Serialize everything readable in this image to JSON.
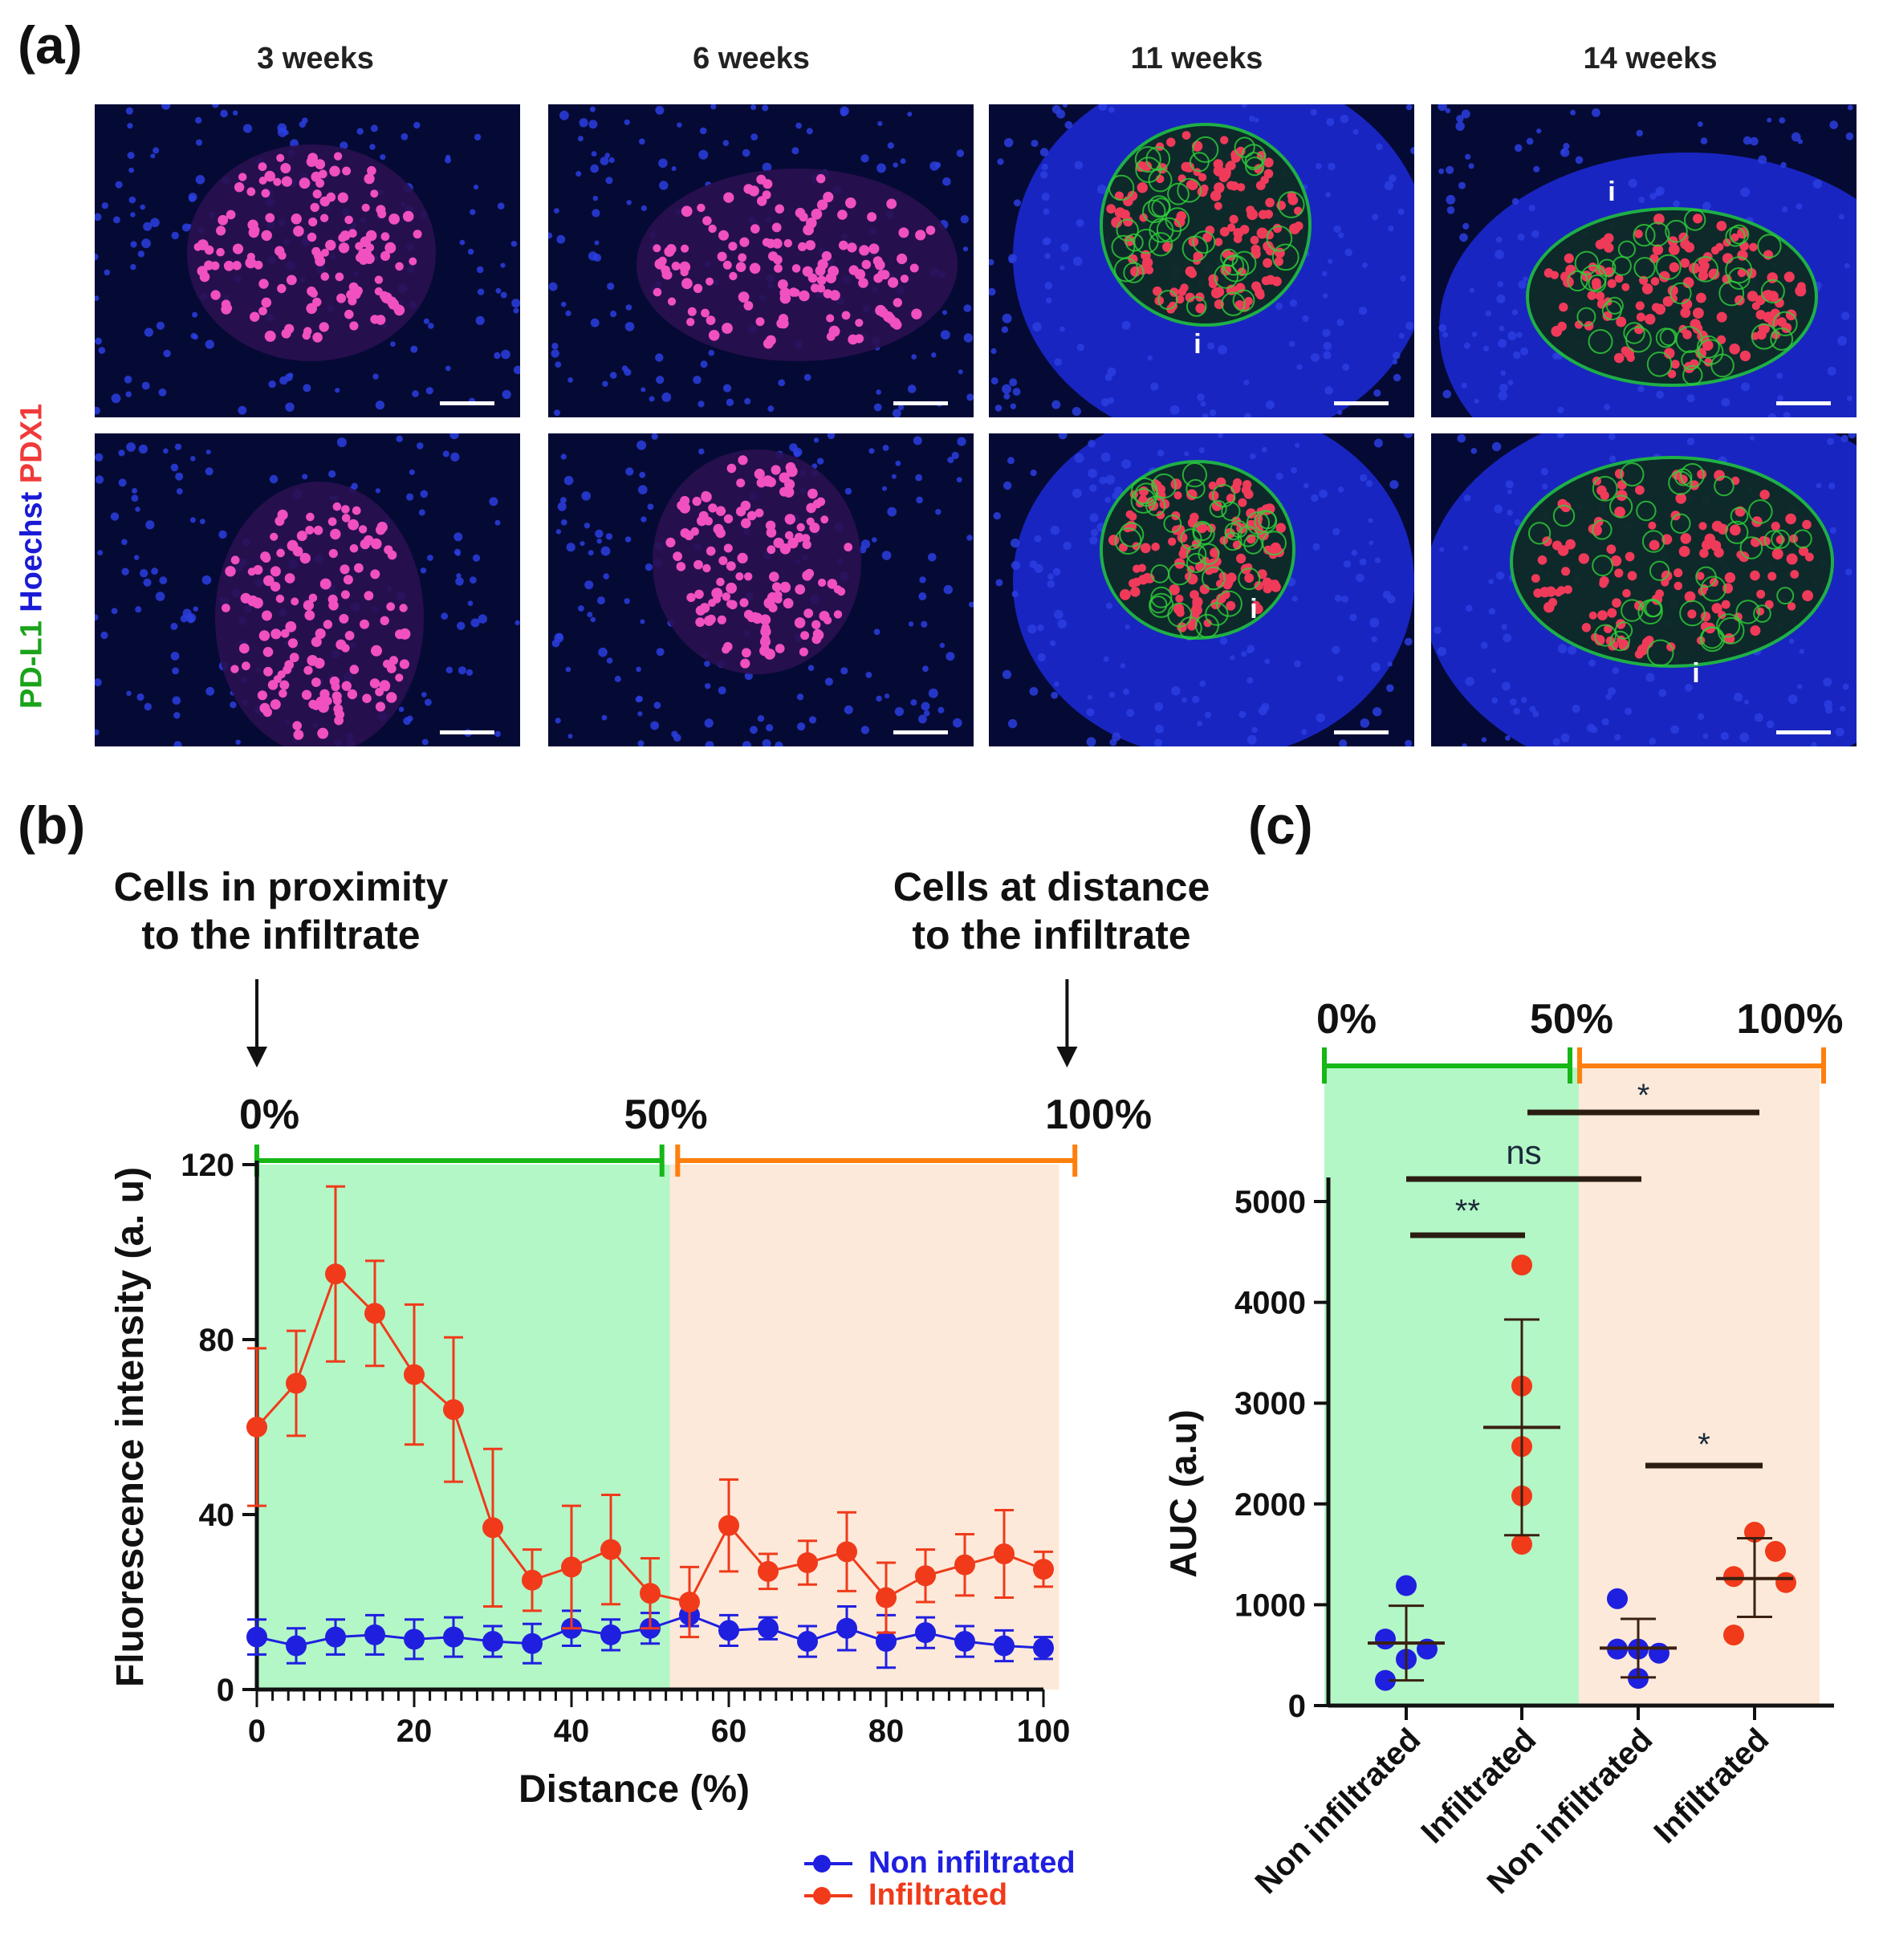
{
  "panels": {
    "a": "(a)",
    "b": "(b)",
    "c": "(c)"
  },
  "panel_a": {
    "timepoints": [
      "3 weeks",
      "6 weeks",
      "11 weeks",
      "14 weeks"
    ],
    "stain_label": [
      {
        "text": "PD-L1",
        "color": "#1aa31a"
      },
      {
        "text": " Hoechst",
        "color": "#1a1ad6"
      },
      {
        "text": " PDX1",
        "color": "#f03a3a"
      }
    ],
    "infiltrate_marker": "i"
  },
  "panel_b": {
    "annotation_left": [
      "Cells in proximity",
      "to the infiltrate"
    ],
    "annotation_right": [
      "Cells at distance",
      "to the infiltrate"
    ]
  },
  "chart_data": [
    {
      "type": "line",
      "xlabel": "Distance (%)",
      "ylabel": "Fluorescence intensity (a. u)",
      "xlim": [
        0,
        100
      ],
      "ylim": [
        0,
        120
      ],
      "xticks": [
        0,
        20,
        40,
        60,
        80,
        100
      ],
      "yticks": [
        0,
        40,
        80,
        120
      ],
      "region_labels": [
        "0%",
        "50%",
        "100%"
      ],
      "region_colors": {
        "proximal": "#b3f7c7",
        "distal": "#fde9d9",
        "proximal_bar": "#16b716",
        "distal_bar": "#ff7f0e"
      },
      "x": [
        0,
        5,
        10,
        15,
        20,
        25,
        30,
        35,
        40,
        45,
        50,
        55,
        60,
        65,
        70,
        75,
        80,
        85,
        90,
        95,
        100
      ],
      "series": [
        {
          "name": "Non infiltrated",
          "color": "#1f1fe0",
          "values": [
            12,
            10,
            12,
            12.5,
            11.5,
            12,
            11,
            10.5,
            14,
            12.5,
            14,
            17,
            13.5,
            14,
            11,
            14,
            11,
            13,
            11,
            10,
            9.5
          ],
          "error": [
            4,
            4,
            4,
            4.5,
            4.5,
            4.5,
            3.5,
            4.5,
            4,
            3.5,
            3.5,
            2.5,
            3.5,
            2.5,
            3.5,
            5,
            6,
            3.5,
            3.5,
            3.5,
            2.5
          ]
        },
        {
          "name": "Infiltrated",
          "color": "#f03a1a",
          "values": [
            60,
            70,
            95,
            86,
            72,
            64,
            37,
            25,
            28,
            32,
            22,
            20,
            37.5,
            27,
            29,
            31.5,
            21,
            26,
            28.5,
            31,
            27.5
          ],
          "error": [
            18,
            12,
            20,
            12,
            16,
            16.5,
            18,
            7,
            14,
            12.5,
            8,
            8,
            10.5,
            4,
            5,
            9,
            8,
            6,
            7,
            10,
            4
          ]
        }
      ]
    },
    {
      "type": "scatter",
      "ylabel": "AUC (a.u)",
      "ylim": [
        0,
        5000
      ],
      "yticks": [
        0,
        1000,
        2000,
        3000,
        4000,
        5000
      ],
      "categories": [
        "Non infiltrated",
        "Infiltrated",
        "Non infiltrated",
        "Infiltrated"
      ],
      "region_labels": [
        "0%",
        "50%",
        "100%"
      ],
      "groups": [
        {
          "label": "Non infiltrated",
          "region": "0-50%",
          "color": "#1f1fe0",
          "points": [
            1190,
            660,
            560,
            460,
            250
          ],
          "mean": 620,
          "sd_low": 250,
          "sd_high": 990
        },
        {
          "label": "Infiltrated",
          "region": "0-50%",
          "color": "#f03a1a",
          "points": [
            4370,
            3170,
            2570,
            2080,
            1600
          ],
          "mean": 2760,
          "sd_low": 1690,
          "sd_high": 3830
        },
        {
          "label": "Non infiltrated",
          "region": "50-100%",
          "color": "#1f1fe0",
          "points": [
            1060,
            560,
            520,
            560,
            270
          ],
          "mean": 570,
          "sd_low": 280,
          "sd_high": 860
        },
        {
          "label": "Infiltrated",
          "region": "50-100%",
          "color": "#f03a1a",
          "points": [
            1720,
            1530,
            1280,
            1220,
            700
          ],
          "mean": 1260,
          "sd_low": 880,
          "sd_high": 1660
        }
      ],
      "significance": [
        {
          "from": 0,
          "to": 1,
          "label": "**"
        },
        {
          "from": 0,
          "to": 2,
          "label": "ns"
        },
        {
          "from": 1,
          "to": 3,
          "label": "*"
        },
        {
          "from": 2,
          "to": 3,
          "label": "*"
        }
      ]
    }
  ]
}
